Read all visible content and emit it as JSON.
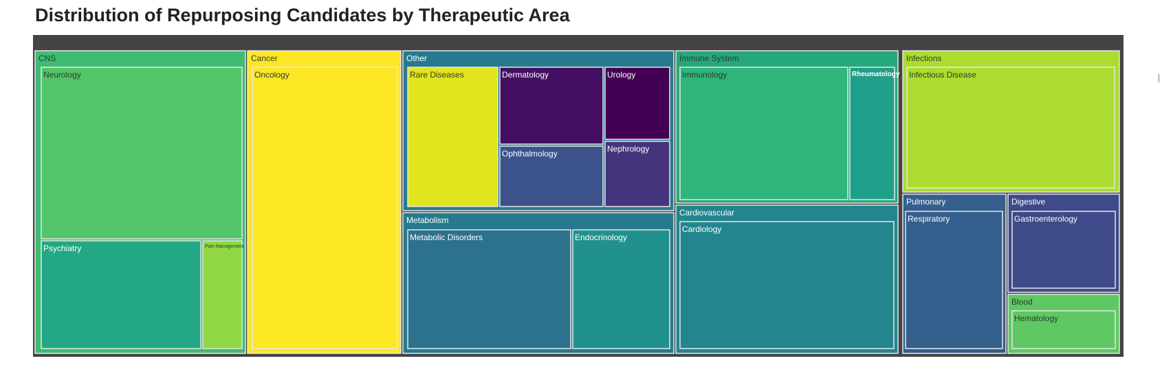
{
  "title": "Distribution of Repurposing Candidates by Therapeutic Area",
  "chart_data": {
    "type": "treemap",
    "title": "Distribution of Repurposing Candidates by Therapeutic Area",
    "background": "#444444",
    "children": [
      {
        "name": "CNS",
        "color": "#3fbc73",
        "text_color": "#2f3a2f",
        "children": [
          {
            "name": "Neurology",
            "value": 1670,
            "color": "#52c569",
            "text_color": "#2f3a2f"
          },
          {
            "name": "Psychiatry",
            "value": 1068,
            "color": "#22a884",
            "text_color": "#ffffff"
          },
          {
            "name": "Pain Management",
            "value": 254,
            "color": "#8fd744",
            "text_color": "#2f3a2f"
          }
        ]
      },
      {
        "name": "Cancer",
        "color": "#fde725",
        "text_color": "#2f3a2f",
        "children": [
          {
            "name": "Oncology",
            "value": 2212,
            "color": "#fde725",
            "text_color": "#2f3a2f"
          }
        ]
      },
      {
        "name": "Other",
        "color": "#277a8e",
        "text_color": "#ffffff",
        "children": [
          {
            "name": "Rare Diseases",
            "value": 588,
            "color": "#e2e41e",
            "text_color": "#2f3a2f"
          },
          {
            "name": "Dermatology",
            "value": 350,
            "color": "#440f62",
            "text_color": "#ffffff"
          },
          {
            "name": "Ophthalmology",
            "value": 228,
            "color": "#3b528b",
            "text_color": "#ffffff"
          },
          {
            "name": "Urology",
            "value": 222,
            "color": "#440154",
            "text_color": "#ffffff"
          },
          {
            "name": "Nephrology",
            "value": 196,
            "color": "#46337e",
            "text_color": "#ffffff"
          }
        ]
      },
      {
        "name": "Metabolism",
        "color": "#277a8e",
        "text_color": "#ffffff",
        "children": [
          {
            "name": "Metabolic Disorders",
            "value": 860,
            "color": "#2c728e",
            "text_color": "#ffffff"
          },
          {
            "name": "Endocrinology",
            "value": 508,
            "color": "#21918c",
            "text_color": "#ffffff"
          }
        ]
      },
      {
        "name": "Immune System",
        "color": "#25a97a",
        "text_color": "#2f3a2f",
        "children": [
          {
            "name": "Immunology",
            "value": 1212,
            "color": "#2fb47c",
            "text_color": "#2f3a2f"
          },
          {
            "name": "Rheumatology",
            "value": 330,
            "color": "#1f9e89",
            "text_color": "#ffffff"
          }
        ]
      },
      {
        "name": "Cardiovascular",
        "color": "#23858e",
        "text_color": "#ffffff",
        "children": [
          {
            "name": "Cardiology",
            "value": 1460,
            "color": "#23858e",
            "text_color": "#ffffff"
          }
        ]
      },
      {
        "name": "Infections",
        "color": "#addc30",
        "text_color": "#2f3a2f",
        "children": [
          {
            "name": "Infectious Disease",
            "value": 1080,
            "color": "#addc30",
            "text_color": "#2f3a2f"
          }
        ]
      },
      {
        "name": "Pulmonary",
        "color": "#355f8d",
        "text_color": "#ffffff",
        "children": [
          {
            "name": "Respiratory",
            "value": 560,
            "color": "#355f8d",
            "text_color": "#ffffff"
          }
        ]
      },
      {
        "name": "Digestive",
        "color": "#3e4a89",
        "text_color": "#ffffff",
        "children": [
          {
            "name": "Gastroenterology",
            "value": 350,
            "color": "#3e4a89",
            "text_color": "#ffffff"
          }
        ]
      },
      {
        "name": "Blood",
        "color": "#5ec962",
        "text_color": "#2f3a2f",
        "children": [
          {
            "name": "Hematology",
            "value": 206,
            "color": "#5ec962",
            "text_color": "#2f3a2f"
          }
        ]
      }
    ]
  }
}
